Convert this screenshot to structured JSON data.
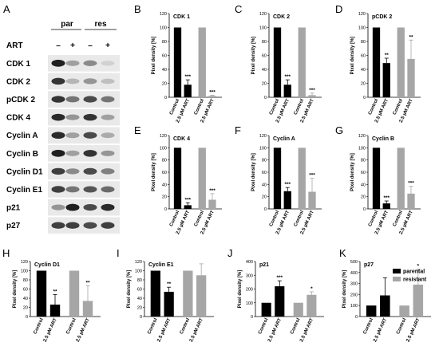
{
  "figure": {
    "panel_letters": {
      "blot": "A"
    },
    "blot": {
      "groups": [
        "par",
        "res"
      ],
      "treatment_label": "ART",
      "treatment_signs": [
        "–",
        "+",
        "–",
        "+"
      ],
      "proteins": [
        "CDK 1",
        "CDK 2",
        "pCDK 2",
        "CDK 4",
        "Cyclin A",
        "Cyclin B",
        "Cyclin D1",
        "Cyclin E1",
        "p21",
        "p27"
      ],
      "band_intensity": [
        [
          0.95,
          0.35,
          0.45,
          0.12
        ],
        [
          0.85,
          0.25,
          0.4,
          0.2
        ],
        [
          0.85,
          0.55,
          0.75,
          0.55
        ],
        [
          0.9,
          0.4,
          0.85,
          0.35
        ],
        [
          0.9,
          0.35,
          0.75,
          0.3
        ],
        [
          0.95,
          0.35,
          0.85,
          0.4
        ],
        [
          0.8,
          0.45,
          0.75,
          0.5
        ],
        [
          0.8,
          0.55,
          0.7,
          0.6
        ],
        [
          0.4,
          0.95,
          0.75,
          0.9
        ],
        [
          0.8,
          0.8,
          0.75,
          0.8
        ]
      ]
    },
    "colors": {
      "parental": "#000000",
      "resistant": "#a6a6a6"
    },
    "legend": {
      "items": [
        "parental",
        "resistant"
      ]
    }
  },
  "chart_data": [
    {
      "letter": "B",
      "type": "bar",
      "title": "CDK 1",
      "ylabel": "Pixel density [%]",
      "ylim": [
        0,
        120
      ],
      "yticks": [
        "0",
        "20",
        "40",
        "60",
        "80",
        "100",
        "120"
      ],
      "categories": [
        "Control",
        "2.5 µM ART",
        "Control",
        "2.5 µM ART"
      ],
      "values": [
        100,
        18,
        100,
        2
      ],
      "errors": [
        0,
        7,
        0,
        1
      ],
      "significance": [
        "",
        "***",
        "",
        "***"
      ]
    },
    {
      "letter": "C",
      "type": "bar",
      "title": "CDK 2",
      "ylabel": "Pixel density [%]",
      "ylim": [
        0,
        120
      ],
      "yticks": [
        "0",
        "20",
        "40",
        "60",
        "80",
        "100",
        "120"
      ],
      "categories": [
        "Control",
        "2.5 µM ART",
        "Control",
        "2.5 µM ART"
      ],
      "values": [
        100,
        18,
        100,
        3
      ],
      "errors": [
        0,
        7,
        0,
        3
      ],
      "significance": [
        "",
        "***",
        "",
        "***"
      ]
    },
    {
      "letter": "D",
      "type": "bar",
      "title": "pCDK 2",
      "ylabel": "Pixel density [%]",
      "ylim": [
        0,
        120
      ],
      "yticks": [
        "0",
        "20",
        "40",
        "60",
        "80",
        "100",
        "120"
      ],
      "categories": [
        "Control",
        "2.5 µM ART",
        "Control",
        "2.5 µM ART"
      ],
      "values": [
        100,
        49,
        100,
        55
      ],
      "errors": [
        0,
        7,
        0,
        27
      ],
      "significance": [
        "",
        "**",
        "",
        "**"
      ]
    },
    {
      "letter": "E",
      "type": "bar",
      "title": "CDK 4",
      "ylabel": "Pixel density [%]",
      "ylim": [
        0,
        120
      ],
      "yticks": [
        "0",
        "20",
        "40",
        "60",
        "80",
        "100",
        "120"
      ],
      "categories": [
        "Control",
        "2.5 µM ART",
        "Control",
        "2.5 µM ART"
      ],
      "values": [
        100,
        6,
        100,
        15
      ],
      "errors": [
        0,
        4,
        0,
        10
      ],
      "significance": [
        "",
        "***",
        "",
        "***"
      ]
    },
    {
      "letter": "F",
      "type": "bar",
      "title": "Cyclin A",
      "ylabel": "Pixel density [%]",
      "ylim": [
        0,
        120
      ],
      "yticks": [
        "0",
        "20",
        "40",
        "60",
        "80",
        "100",
        "120"
      ],
      "categories": [
        "Control",
        "2.5 µM ART",
        "Control",
        "2.5 µM ART"
      ],
      "values": [
        100,
        29,
        100,
        28
      ],
      "errors": [
        0,
        6,
        0,
        22
      ],
      "significance": [
        "",
        "***",
        "",
        "***"
      ]
    },
    {
      "letter": "G",
      "type": "bar",
      "title": "Cyclin B",
      "ylabel": "Pixel density [%]",
      "ylim": [
        0,
        120
      ],
      "yticks": [
        "0",
        "20",
        "40",
        "60",
        "80",
        "100",
        "120"
      ],
      "categories": [
        "Control",
        "2.5 µM ART",
        "Control",
        "2.5 µM ART"
      ],
      "values": [
        100,
        9,
        100,
        25
      ],
      "errors": [
        0,
        4,
        0,
        12
      ],
      "significance": [
        "",
        "***",
        "",
        "***"
      ]
    },
    {
      "letter": "H",
      "type": "bar",
      "title": "Cyclin D1",
      "ylabel": "Pixel density [%]",
      "ylim": [
        0,
        120
      ],
      "yticks": [
        "0",
        "20",
        "40",
        "60",
        "80",
        "100",
        "120"
      ],
      "categories": [
        "Control",
        "2.5 µM ART",
        "Control",
        "2.5 µM ART"
      ],
      "values": [
        100,
        26,
        100,
        34
      ],
      "errors": [
        0,
        22,
        0,
        33
      ],
      "significance": [
        "",
        "**",
        "",
        "**"
      ]
    },
    {
      "letter": "I",
      "type": "bar",
      "title": "Cyclin E1",
      "ylabel": "Pixel density [%]",
      "ylim": [
        0,
        120
      ],
      "yticks": [
        "0",
        "20",
        "40",
        "60",
        "80",
        "100",
        "120"
      ],
      "categories": [
        "Control",
        "2.5 µM ART",
        "Control",
        "2.5 µM ART"
      ],
      "values": [
        100,
        54,
        100,
        90
      ],
      "errors": [
        0,
        10,
        0,
        25
      ],
      "significance": [
        "",
        "**",
        "",
        ""
      ]
    },
    {
      "letter": "J",
      "type": "bar",
      "title": "p21",
      "ylabel": "Pixel density [%]",
      "ylim": [
        0,
        400
      ],
      "yticks": [
        "0",
        "100",
        "200",
        "300",
        "400"
      ],
      "categories": [
        "Control",
        "2.5 µM ART",
        "Control",
        "2.5 µM ART"
      ],
      "values": [
        100,
        220,
        100,
        158
      ],
      "errors": [
        0,
        40,
        0,
        22
      ],
      "significance": [
        "",
        "***",
        "",
        "*"
      ]
    },
    {
      "letter": "K",
      "type": "bar",
      "title": "p27",
      "ylabel": "Pixel density [%]",
      "ylim": [
        0,
        500
      ],
      "yticks": [
        "0",
        "100",
        "200",
        "300",
        "400",
        "500"
      ],
      "categories": [
        "Control",
        "2.5 µM ART",
        "Control",
        "2.5 µM ART"
      ],
      "values": [
        100,
        192,
        100,
        290
      ],
      "errors": [
        0,
        160,
        0,
        140
      ],
      "significance": [
        "",
        "",
        "",
        "*"
      ]
    }
  ]
}
